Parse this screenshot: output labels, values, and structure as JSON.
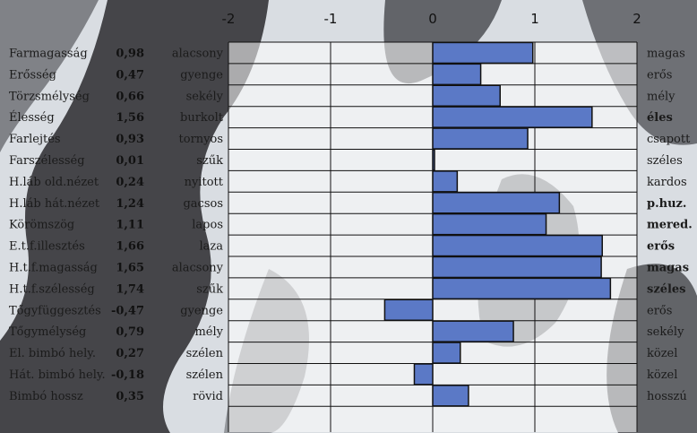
{
  "chart_data": {
    "type": "bar",
    "orientation": "horizontal",
    "xlim": [
      -2,
      2
    ],
    "x_ticks": [
      "-2",
      "-1",
      "0",
      "1",
      "2"
    ],
    "grid": true,
    "bar_color": "#5b79c6",
    "categories": [
      "Farmagasság",
      "Erősség",
      "Törzsmélység",
      "Élesség",
      "Farlejtés",
      "Farszélesség",
      "H.láb old.nézet",
      "H.láb hát.nézet",
      "Körömszög",
      "E.t.f.illesztés",
      "H.t.f.magasság",
      "H.t.f.szélesség",
      "Tőgyfüggesztés",
      "Tőgymélység",
      "El. bimbó hely.",
      "Hát. bimbó hely.",
      "Bimbó hossz"
    ],
    "value_labels": [
      "0,98",
      "0,47",
      "0,66",
      "1,56",
      "0,93",
      "0,01",
      "0,24",
      "1,24",
      "1,11",
      "1,66",
      "1,65",
      "1,74",
      "-0,47",
      "0,79",
      "0,27",
      "-0,18",
      "0,35"
    ],
    "values": [
      0.98,
      0.47,
      0.66,
      1.56,
      0.93,
      0.01,
      0.24,
      1.24,
      1.11,
      1.66,
      1.65,
      1.74,
      -0.47,
      0.79,
      0.27,
      -0.18,
      0.35
    ],
    "left_labels": [
      "alacsony",
      "gyenge",
      "sekély",
      "burkolt",
      "tornyos",
      "szűk",
      "nyitott",
      "gacsos",
      "lapos",
      "laza",
      "alacsony",
      "szűk",
      "gyenge",
      "mély",
      "szélen",
      "szélen",
      "rövid"
    ],
    "right_labels": [
      "magas",
      "erős",
      "mély",
      "éles",
      "csapott",
      "széles",
      "kardos",
      "p.huz.",
      "mered.",
      "erős",
      "magas",
      "széles",
      "erős",
      "sekély",
      "közel",
      "közel",
      "hosszú"
    ],
    "right_bold": [
      false,
      false,
      false,
      true,
      false,
      false,
      false,
      true,
      true,
      true,
      true,
      true,
      false,
      false,
      false,
      false,
      false
    ]
  }
}
